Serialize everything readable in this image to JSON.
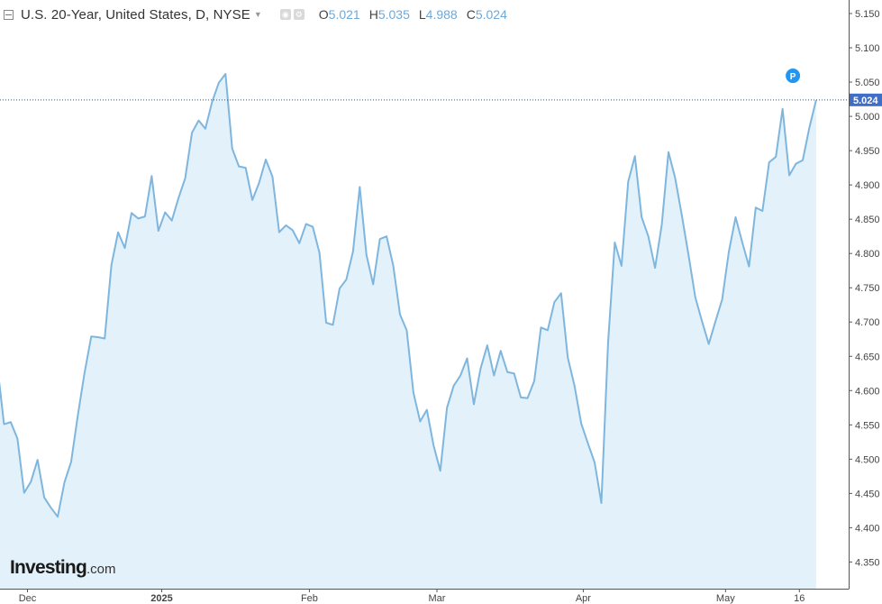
{
  "header": {
    "symbol": "U.S. 20-Year, United States, D, NYSE",
    "open_key": "O",
    "open_val": "5.021",
    "high_key": "H",
    "high_val": "5.035",
    "low_key": "L",
    "low_val": "4.988",
    "close_key": "C",
    "close_val": "5.024",
    "icons": [
      "collapse-icon",
      "chevron-down-icon",
      "eye-icon",
      "settings-icon"
    ]
  },
  "logo": {
    "main": "Investing",
    "suffix": ".com"
  },
  "marker": {
    "label": "P"
  },
  "colors": {
    "line": "#7fb6de",
    "fill": "#e2f1fa",
    "axis_text": "#444444",
    "price_label_bg": "#3f6ec6",
    "marker_bg": "#2196f3",
    "ohlc_value": "#6fa8d6"
  },
  "chart_data": {
    "type": "area",
    "title": "U.S. 20-Year, United States, D, NYSE",
    "yaxis_ticks": [
      "5.150",
      "5.100",
      "5.050",
      "5.000",
      "4.950",
      "4.900",
      "4.850",
      "4.800",
      "4.750",
      "4.700",
      "4.650",
      "4.600",
      "4.550",
      "4.500",
      "4.450",
      "4.400",
      "4.350"
    ],
    "ylim": [
      4.325,
      5.165
    ],
    "xaxis_ticks": [
      {
        "label": "Dec",
        "index": 4.5
      },
      {
        "label": "2025",
        "index": 24.5
      },
      {
        "label": "Feb",
        "index": 46.5
      },
      {
        "label": "Mar",
        "index": 65.5
      },
      {
        "label": "Apr",
        "index": 87.3
      },
      {
        "label": "May",
        "index": 108.5
      },
      {
        "label": "16",
        "index": 119.5
      }
    ],
    "last_value": "5.024",
    "last_value_num": 5.024,
    "marker_index": 118,
    "marker_value": 5.05,
    "series": [
      {
        "values": [
          4.637,
          4.551,
          4.554,
          4.53,
          4.451,
          4.467,
          4.499,
          4.444,
          4.429,
          4.416,
          4.466,
          4.496,
          4.564,
          4.626,
          4.679,
          4.678,
          4.676,
          4.783,
          4.831,
          4.808,
          4.859,
          4.851,
          4.854,
          4.913,
          4.833,
          4.86,
          4.848,
          4.881,
          4.91,
          4.976,
          4.994,
          4.982,
          5.021,
          5.049,
          5.062,
          4.953,
          4.927,
          4.925,
          4.878,
          4.903,
          4.937,
          4.912,
          4.831,
          4.841,
          4.834,
          4.815,
          4.843,
          4.839,
          4.801,
          4.699,
          4.696,
          4.749,
          4.762,
          4.803,
          4.897,
          4.798,
          4.755,
          4.821,
          4.825,
          4.782,
          4.711,
          4.688,
          4.597,
          4.555,
          4.572,
          4.52,
          4.483,
          4.575,
          4.607,
          4.622,
          4.647,
          4.58,
          4.632,
          4.666,
          4.622,
          4.658,
          4.627,
          4.625,
          4.59,
          4.589,
          4.614,
          4.692,
          4.688,
          4.729,
          4.742,
          4.648,
          4.607,
          4.552,
          4.523,
          4.495,
          4.436,
          4.67,
          4.816,
          4.782,
          4.905,
          4.942,
          4.853,
          4.825,
          4.779,
          4.842,
          4.948,
          4.91,
          4.855,
          4.797,
          4.736,
          4.701,
          4.668,
          4.701,
          4.733,
          4.803,
          4.853,
          4.816,
          4.781,
          4.867,
          4.862,
          4.933,
          4.941,
          5.011,
          4.914,
          4.931,
          4.936,
          4.984,
          5.024
        ]
      }
    ]
  }
}
